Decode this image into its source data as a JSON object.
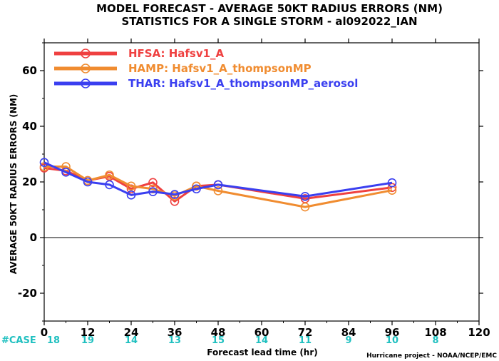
{
  "chart_data": {
    "type": "line",
    "title": "MODEL FORECAST - AVERAGE 50KT RADIUS ERRORS (NM)",
    "subtitle": "STATISTICS FOR A SINGLE STORM - al092022_IAN",
    "xlabel": "Forecast lead time (hr)",
    "ylabel": "AVERAGE 50KT RADIUS ERRORS (NM)",
    "xlim": [
      0,
      120
    ],
    "ylim": [
      -30,
      70
    ],
    "xticks": [
      0,
      12,
      24,
      36,
      48,
      60,
      72,
      84,
      96,
      108,
      120
    ],
    "yticks": [
      -20,
      0,
      20,
      40,
      60
    ],
    "zero_line": true,
    "legend_position": "top-left",
    "series": [
      {
        "name": "HFSA: Hafsv1_A",
        "color": "#ef4040",
        "points": [
          [
            0,
            25
          ],
          [
            6,
            24
          ],
          [
            12,
            20.5
          ],
          [
            18,
            22
          ],
          [
            24,
            17.5
          ],
          [
            30,
            19.8
          ],
          [
            36,
            13
          ],
          [
            42,
            18.5
          ],
          [
            48,
            19
          ],
          [
            72,
            14
          ],
          [
            96,
            18
          ]
        ]
      },
      {
        "name": "HAMP: Hafsv1_A_thompsonMP",
        "color": "#f08c30",
        "points": [
          [
            0,
            25.5
          ],
          [
            6,
            25.5
          ],
          [
            12,
            20.5
          ],
          [
            18,
            22.5
          ],
          [
            24,
            18.5
          ],
          [
            30,
            17.5
          ],
          [
            36,
            15
          ],
          [
            42,
            18.5
          ],
          [
            48,
            16.8
          ],
          [
            72,
            11
          ],
          [
            96,
            17
          ]
        ]
      },
      {
        "name": "THAR: Hafsv1_A_thompsonMP_aerosol",
        "color": "#3a3ff0",
        "points": [
          [
            0,
            27
          ],
          [
            6,
            23.5
          ],
          [
            12,
            20
          ],
          [
            18,
            19
          ],
          [
            24,
            15.3
          ],
          [
            30,
            16.5
          ],
          [
            36,
            15.5
          ],
          [
            42,
            17.5
          ],
          [
            48,
            19
          ],
          [
            72,
            14.8
          ],
          [
            96,
            19.7
          ]
        ]
      }
    ],
    "cases": {
      "label": "#CASE",
      "color": "#20c0c0",
      "x": [
        0,
        12,
        24,
        36,
        48,
        60,
        72,
        84,
        96,
        108
      ],
      "values": [
        "18",
        "19",
        "14",
        "13",
        "15",
        "14",
        "11",
        "9",
        "10",
        "8"
      ]
    }
  },
  "credit": "Hurricane project - NOAA/NCEP/EMC"
}
